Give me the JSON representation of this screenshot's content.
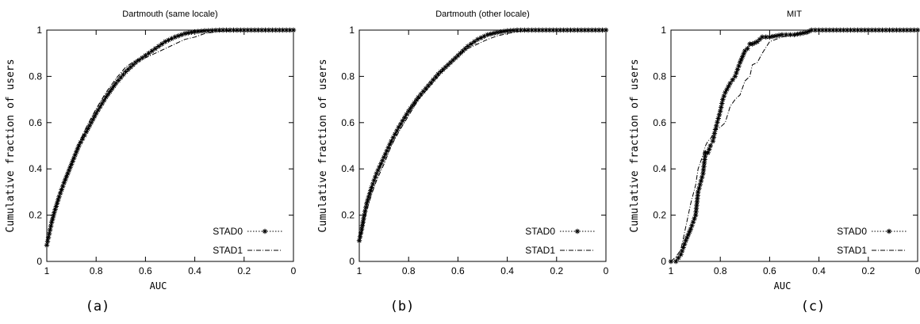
{
  "chart_data": [
    {
      "type": "line",
      "title": "Dartmouth (same locale)",
      "xlabel": "AUC",
      "ylabel": "Cumulative fraction of users",
      "xlim": [
        1,
        0
      ],
      "ylim": [
        0,
        1
      ],
      "x_reversed": true,
      "xticks": [
        "1",
        "0.8",
        "0.6",
        "0.4",
        "0.2",
        "0"
      ],
      "yticks": [
        "0",
        "0.2",
        "0.4",
        "0.6",
        "0.8",
        "1"
      ],
      "legend_position": "bottom-right",
      "caption": "(a)",
      "series": [
        {
          "name": "STAD0",
          "style": "dotted-asterisk",
          "x": [
            1.0,
            0.99,
            0.98,
            0.97,
            0.95,
            0.93,
            0.9,
            0.87,
            0.84,
            0.8,
            0.76,
            0.72,
            0.68,
            0.64,
            0.6,
            0.56,
            0.52,
            0.48,
            0.44,
            0.4,
            0.36,
            0.3,
            0.2,
            0.1,
            0.0
          ],
          "y": [
            0.07,
            0.12,
            0.17,
            0.21,
            0.28,
            0.34,
            0.42,
            0.5,
            0.56,
            0.64,
            0.71,
            0.77,
            0.82,
            0.86,
            0.89,
            0.92,
            0.95,
            0.97,
            0.985,
            0.993,
            0.997,
            1.0,
            1.0,
            1.0,
            1.0
          ]
        },
        {
          "name": "STAD1",
          "style": "dash-dot",
          "x": [
            1.0,
            0.99,
            0.98,
            0.97,
            0.95,
            0.93,
            0.9,
            0.87,
            0.84,
            0.8,
            0.76,
            0.72,
            0.68,
            0.64,
            0.6,
            0.56,
            0.52,
            0.48,
            0.44,
            0.4,
            0.36,
            0.3,
            0.2,
            0.1,
            0.0
          ],
          "y": [
            0.07,
            0.12,
            0.17,
            0.22,
            0.29,
            0.35,
            0.43,
            0.51,
            0.58,
            0.66,
            0.73,
            0.79,
            0.84,
            0.87,
            0.88,
            0.9,
            0.92,
            0.94,
            0.96,
            0.97,
            0.985,
            0.995,
            1.0,
            1.0,
            1.0
          ]
        }
      ]
    },
    {
      "type": "line",
      "title": "Dartmouth (other locale)",
      "xlabel": "",
      "ylabel": "Cumulative fraction of users",
      "xlim": [
        1,
        0
      ],
      "ylim": [
        0,
        1
      ],
      "x_reversed": true,
      "xticks": [
        "1",
        "0.8",
        "0.6",
        "0.4",
        "0.2",
        "0"
      ],
      "yticks": [
        "0",
        "0.2",
        "0.4",
        "0.6",
        "0.8",
        "1"
      ],
      "legend_position": "bottom-right",
      "caption": "(b)",
      "series": [
        {
          "name": "STAD0",
          "style": "dotted-asterisk",
          "x": [
            1.0,
            0.99,
            0.98,
            0.97,
            0.95,
            0.93,
            0.9,
            0.87,
            0.84,
            0.8,
            0.76,
            0.72,
            0.68,
            0.64,
            0.6,
            0.56,
            0.52,
            0.48,
            0.44,
            0.4,
            0.36,
            0.3,
            0.2,
            0.1,
            0.0
          ],
          "y": [
            0.09,
            0.14,
            0.2,
            0.25,
            0.32,
            0.38,
            0.45,
            0.52,
            0.58,
            0.65,
            0.71,
            0.76,
            0.81,
            0.85,
            0.89,
            0.93,
            0.96,
            0.98,
            0.99,
            0.997,
            1.0,
            1.0,
            1.0,
            1.0,
            1.0
          ]
        },
        {
          "name": "STAD1",
          "style": "dash-dot",
          "x": [
            1.0,
            0.99,
            0.98,
            0.97,
            0.95,
            0.93,
            0.9,
            0.87,
            0.84,
            0.8,
            0.76,
            0.72,
            0.68,
            0.64,
            0.6,
            0.56,
            0.52,
            0.48,
            0.44,
            0.4,
            0.36,
            0.3,
            0.2,
            0.1,
            0.0
          ],
          "y": [
            0.08,
            0.12,
            0.17,
            0.22,
            0.29,
            0.35,
            0.42,
            0.5,
            0.56,
            0.63,
            0.7,
            0.75,
            0.8,
            0.85,
            0.89,
            0.92,
            0.94,
            0.96,
            0.975,
            0.985,
            0.993,
            1.0,
            1.0,
            1.0,
            1.0
          ]
        }
      ]
    },
    {
      "type": "line",
      "title": "MIT",
      "xlabel": "AUC",
      "ylabel": "Cumulative fraction of users",
      "xlim": [
        1,
        0
      ],
      "ylim": [
        0,
        1
      ],
      "x_reversed": true,
      "xticks": [
        "1",
        "0.8",
        "0.6",
        "0.4",
        "0.2",
        "0"
      ],
      "yticks": [
        "0",
        "0.2",
        "0.4",
        "0.6",
        "0.8",
        "1"
      ],
      "legend_position": "bottom-right",
      "caption": "(c)",
      "series": [
        {
          "name": "STAD0",
          "style": "dotted-asterisk",
          "x": [
            1.0,
            0.98,
            0.96,
            0.95,
            0.94,
            0.92,
            0.9,
            0.89,
            0.87,
            0.86,
            0.85,
            0.84,
            0.83,
            0.82,
            0.8,
            0.79,
            0.78,
            0.76,
            0.74,
            0.72,
            0.7,
            0.69,
            0.68,
            0.67,
            0.65,
            0.63,
            0.6,
            0.55,
            0.5,
            0.45,
            0.43,
            0.4,
            0.3,
            0.2,
            0.1,
            0.0
          ],
          "y": [
            0.0,
            0.0,
            0.03,
            0.06,
            0.09,
            0.14,
            0.2,
            0.3,
            0.38,
            0.47,
            0.47,
            0.5,
            0.52,
            0.57,
            0.65,
            0.7,
            0.73,
            0.77,
            0.8,
            0.86,
            0.91,
            0.92,
            0.94,
            0.94,
            0.95,
            0.97,
            0.97,
            0.98,
            0.98,
            0.99,
            1.0,
            1.0,
            1.0,
            1.0,
            1.0,
            1.0
          ]
        },
        {
          "name": "STAD1",
          "style": "dash-dot",
          "x": [
            1.0,
            0.98,
            0.96,
            0.95,
            0.94,
            0.92,
            0.9,
            0.89,
            0.87,
            0.86,
            0.85,
            0.84,
            0.83,
            0.82,
            0.8,
            0.78,
            0.76,
            0.74,
            0.72,
            0.7,
            0.68,
            0.67,
            0.65,
            0.63,
            0.6,
            0.55,
            0.5,
            0.45,
            0.43,
            0.4,
            0.3,
            0.2,
            0.1,
            0.0
          ],
          "y": [
            0.0,
            0.02,
            0.05,
            0.1,
            0.15,
            0.25,
            0.33,
            0.4,
            0.46,
            0.5,
            0.52,
            0.53,
            0.55,
            0.57,
            0.58,
            0.6,
            0.67,
            0.7,
            0.72,
            0.78,
            0.8,
            0.85,
            0.86,
            0.9,
            0.95,
            0.97,
            0.98,
            0.99,
            1.0,
            1.0,
            1.0,
            1.0,
            1.0,
            1.0
          ]
        }
      ]
    }
  ]
}
